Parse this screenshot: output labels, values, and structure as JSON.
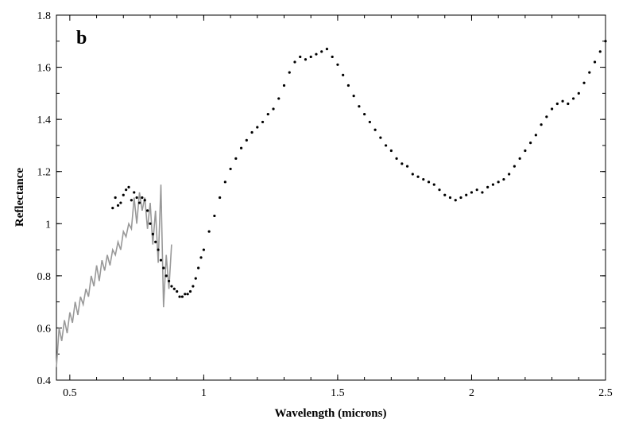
{
  "chart_data": {
    "type": "scatter",
    "panel_label": "b",
    "xlabel": "Wavelength (microns)",
    "ylabel": "Reflectance",
    "xlim": [
      0.45,
      2.5
    ],
    "ylim": [
      0.4,
      1.8
    ],
    "x_ticks": [
      0.5,
      1,
      1.5,
      2,
      2.5
    ],
    "x_tick_labels": [
      "0.5",
      "1",
      "1.5",
      "2",
      "2.5"
    ],
    "y_ticks": [
      0.4,
      0.6,
      0.8,
      1,
      1.2,
      1.4,
      1.6,
      1.8
    ],
    "y_tick_labels": [
      "0.4",
      "0.6",
      "0.8",
      "1",
      "1.2",
      "1.4",
      "1.6",
      "1.8"
    ],
    "grid": false,
    "legend": "none",
    "series": [
      {
        "style": "line",
        "color": "#999999",
        "x": [
          0.45,
          0.46,
          0.47,
          0.48,
          0.49,
          0.5,
          0.51,
          0.52,
          0.53,
          0.54,
          0.55,
          0.56,
          0.57,
          0.58,
          0.59,
          0.6,
          0.61,
          0.62,
          0.63,
          0.64,
          0.65,
          0.66,
          0.67,
          0.68,
          0.69,
          0.7,
          0.71,
          0.72,
          0.73,
          0.74,
          0.75,
          0.76,
          0.77,
          0.78,
          0.79,
          0.8,
          0.81,
          0.82,
          0.83,
          0.84,
          0.85,
          0.86,
          0.87,
          0.88
        ],
        "y": [
          0.45,
          0.6,
          0.55,
          0.63,
          0.58,
          0.66,
          0.62,
          0.7,
          0.65,
          0.72,
          0.69,
          0.75,
          0.72,
          0.8,
          0.76,
          0.84,
          0.78,
          0.86,
          0.82,
          0.88,
          0.84,
          0.9,
          0.88,
          0.93,
          0.9,
          0.97,
          0.95,
          1.0,
          0.98,
          1.1,
          1.0,
          1.12,
          1.05,
          1.1,
          0.98,
          1.08,
          0.92,
          1.05,
          0.85,
          1.15,
          0.68,
          0.88,
          0.75,
          0.92
        ]
      },
      {
        "style": "points",
        "color": "#000000",
        "x": [
          0.66,
          0.67,
          0.68,
          0.69,
          0.7,
          0.71,
          0.72,
          0.73,
          0.74,
          0.75,
          0.76,
          0.77,
          0.78,
          0.79,
          0.8,
          0.81,
          0.82,
          0.83,
          0.84,
          0.85,
          0.86,
          0.87,
          0.88,
          0.89,
          0.9,
          0.91,
          0.92,
          0.93,
          0.94,
          0.95,
          0.96,
          0.97,
          0.98,
          0.99,
          1.0,
          1.02,
          1.04,
          1.06,
          1.08,
          1.1,
          1.12,
          1.14,
          1.16,
          1.18,
          1.2,
          1.22,
          1.24,
          1.26,
          1.28,
          1.3,
          1.32,
          1.34,
          1.36,
          1.38,
          1.4,
          1.42,
          1.44,
          1.46,
          1.48,
          1.5,
          1.52,
          1.54,
          1.56,
          1.58,
          1.6,
          1.62,
          1.64,
          1.66,
          1.68,
          1.7,
          1.72,
          1.74,
          1.76,
          1.78,
          1.8,
          1.82,
          1.84,
          1.86,
          1.88,
          1.9,
          1.92,
          1.94,
          1.96,
          1.98,
          2.0,
          2.02,
          2.04,
          2.06,
          2.08,
          2.1,
          2.12,
          2.14,
          2.16,
          2.18,
          2.2,
          2.22,
          2.24,
          2.26,
          2.28,
          2.3,
          2.32,
          2.34,
          2.36,
          2.38,
          2.4,
          2.42,
          2.44,
          2.46,
          2.48,
          2.5
        ],
        "y": [
          1.06,
          1.1,
          1.07,
          1.08,
          1.11,
          1.13,
          1.14,
          1.09,
          1.12,
          1.1,
          1.08,
          1.1,
          1.09,
          1.05,
          1.0,
          0.96,
          0.93,
          0.9,
          0.86,
          0.83,
          0.8,
          0.78,
          0.76,
          0.75,
          0.74,
          0.72,
          0.72,
          0.73,
          0.73,
          0.74,
          0.76,
          0.79,
          0.83,
          0.87,
          0.9,
          0.97,
          1.03,
          1.1,
          1.16,
          1.21,
          1.25,
          1.29,
          1.32,
          1.35,
          1.37,
          1.39,
          1.42,
          1.44,
          1.48,
          1.53,
          1.58,
          1.62,
          1.64,
          1.63,
          1.64,
          1.65,
          1.66,
          1.67,
          1.64,
          1.61,
          1.57,
          1.53,
          1.49,
          1.45,
          1.42,
          1.39,
          1.36,
          1.33,
          1.3,
          1.28,
          1.25,
          1.23,
          1.22,
          1.19,
          1.18,
          1.17,
          1.16,
          1.15,
          1.13,
          1.11,
          1.1,
          1.09,
          1.1,
          1.11,
          1.12,
          1.13,
          1.12,
          1.14,
          1.15,
          1.16,
          1.17,
          1.19,
          1.22,
          1.25,
          1.28,
          1.31,
          1.34,
          1.38,
          1.41,
          1.44,
          1.46,
          1.47,
          1.46,
          1.48,
          1.5,
          1.54,
          1.58,
          1.62,
          1.66,
          1.7
        ]
      }
    ]
  }
}
